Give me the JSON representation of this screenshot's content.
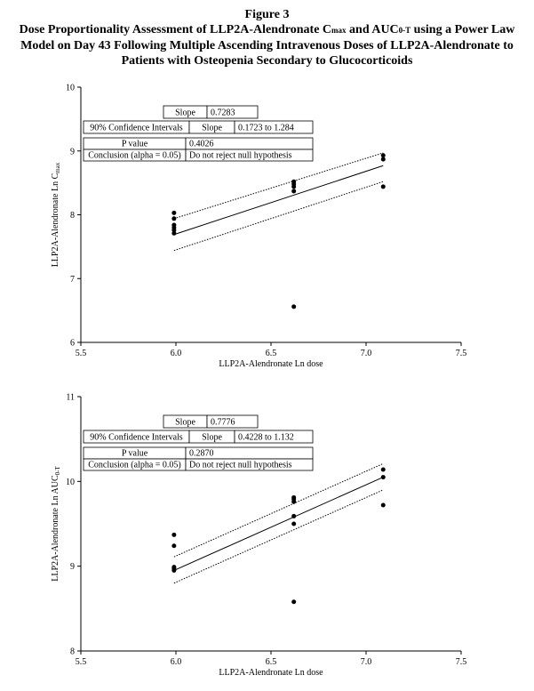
{
  "figure": {
    "label": "Figure 3",
    "title_parts": [
      "Dose Proportionality Assessment of LLP2A-Alendronate C",
      "max",
      " and AUC",
      "0-T",
      " using a Power Law Model on Day 43 Following Multiple Ascending Intravenous Doses of LLP2A-Alendronate to Patients with Osteopenia Secondary to Glucocorticoids"
    ]
  },
  "chart_data": [
    {
      "type": "scatter",
      "xlabel": "LLP2A-Alendronate Ln dose",
      "ylabel_parts": [
        "LLP2A-Alendronate Ln C",
        "max"
      ],
      "xlim": [
        5.5,
        7.5
      ],
      "xticks": [
        5.5,
        {
          "value": 6,
          "label": "6.0"
        },
        6.5,
        {
          "value": 7,
          "label": "7.0"
        },
        7.5
      ],
      "ylim": [
        6,
        10
      ],
      "yticks": [
        6,
        7,
        8,
        9,
        10
      ],
      "color": "#000000",
      "x": [
        5.99,
        5.99,
        5.99,
        5.99,
        5.99,
        5.99,
        6.62,
        6.62,
        6.62,
        6.62,
        6.62,
        7.09,
        7.09,
        7.09
      ],
      "values": [
        8.03,
        7.94,
        7.84,
        7.8,
        7.76,
        7.71,
        8.52,
        8.48,
        8.44,
        8.37,
        6.56,
        8.93,
        8.87,
        8.44
      ],
      "lines": [
        {
          "style": "solid",
          "x": [
            5.99,
            7.09
          ],
          "values": [
            7.69,
            8.77
          ]
        },
        {
          "style": "dotted",
          "x": [
            5.99,
            7.09
          ],
          "values": [
            7.94,
            8.97
          ]
        },
        {
          "style": "dotted",
          "x": [
            5.99,
            7.09
          ],
          "values": [
            7.44,
            8.52
          ]
        }
      ],
      "stats": {
        "slope_label": "Slope",
        "slope": "0.7283",
        "ci_label": "90% Confidence Intervals",
        "ci_slope_label": "Slope",
        "ci": "0.1723 to 1.284",
        "p_label": "P value",
        "p": "0.4026",
        "conclusion_label": "Conclusion (alpha = 0.05)",
        "conclusion": "Do not reject null hypothesis"
      }
    },
    {
      "type": "scatter",
      "xlabel": "LLP2A-Alendronate Ln dose",
      "ylabel_parts": [
        "LLP2A-Alendronate Ln AUC",
        "0-T"
      ],
      "xlim": [
        5.5,
        7.5
      ],
      "xticks": [
        5.5,
        {
          "value": 6,
          "label": "6.0"
        },
        6.5,
        {
          "value": 7,
          "label": "7.0"
        },
        7.5
      ],
      "ylim": [
        8,
        11
      ],
      "yticks": [
        8,
        9,
        10,
        11
      ],
      "color": "#000000",
      "x": [
        5.99,
        5.99,
        5.99,
        5.99,
        5.99,
        6.62,
        6.62,
        6.62,
        6.62,
        6.62,
        6.62,
        7.09,
        7.09,
        7.09
      ],
      "values": [
        9.37,
        9.24,
        8.99,
        8.97,
        8.95,
        9.81,
        9.79,
        9.76,
        9.59,
        9.5,
        8.58,
        10.14,
        10.05,
        9.72
      ],
      "lines": [
        {
          "style": "solid",
          "x": [
            5.99,
            7.09
          ],
          "values": [
            8.95,
            10.05
          ]
        },
        {
          "style": "dotted",
          "x": [
            5.99,
            7.09
          ],
          "values": [
            9.11,
            10.21
          ]
        },
        {
          "style": "dotted",
          "x": [
            5.99,
            7.09
          ],
          "values": [
            8.8,
            9.9
          ]
        }
      ],
      "stats": {
        "slope_label": "Slope",
        "slope": "0.7776",
        "ci_label": "90% Confidence Intervals",
        "ci_slope_label": "Slope",
        "ci": "0.4228 to 1.132",
        "p_label": "P value",
        "p": "0.2870",
        "conclusion_label": "Conclusion (alpha = 0.05)",
        "conclusion": "Do not reject null hypothesis"
      }
    }
  ]
}
